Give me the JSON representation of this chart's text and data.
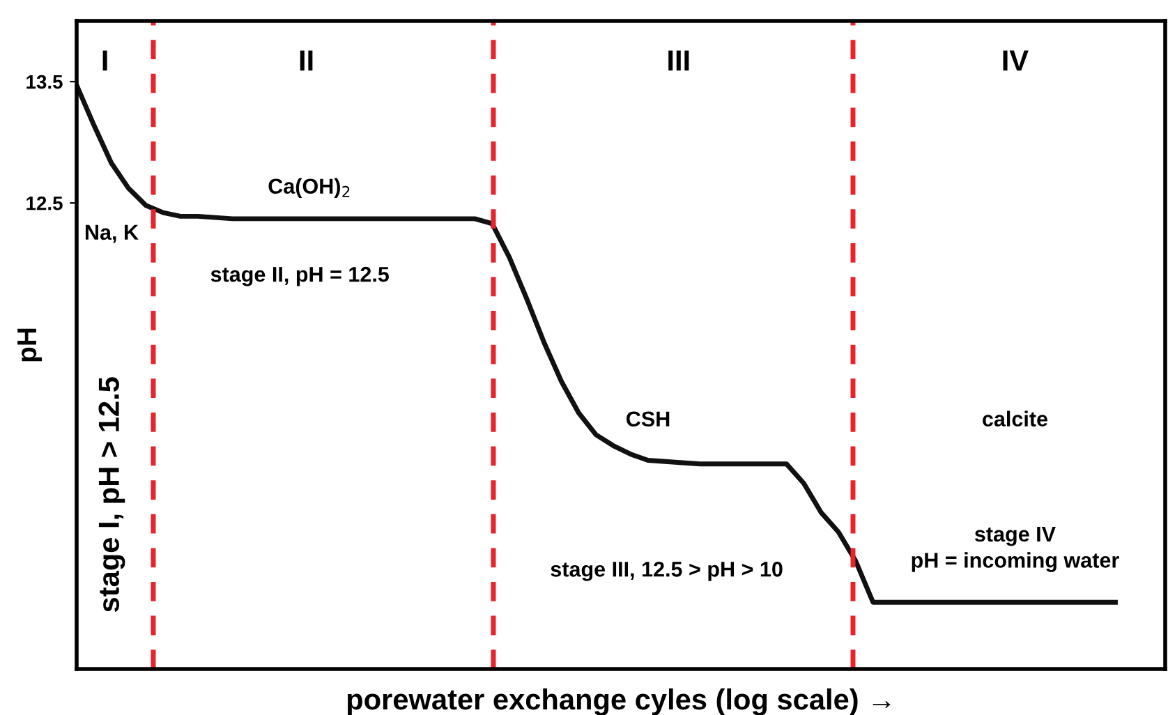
{
  "chart_data": {
    "type": "line",
    "xlabel": "porewater exchange cyles (log scale) →",
    "ylabel": "pH",
    "categories": [
      null,
      null,
      null,
      null,
      null,
      null,
      null,
      null,
      null,
      null,
      null,
      null,
      null,
      null,
      null,
      null,
      null,
      null,
      null,
      null,
      null,
      null,
      null,
      null,
      null,
      null,
      null,
      null,
      null,
      null,
      null,
      null,
      null,
      null,
      null,
      null,
      null,
      null,
      null,
      null,
      null,
      null,
      null,
      null,
      null,
      null,
      null,
      null,
      null,
      null,
      null,
      null,
      null,
      null,
      null,
      null,
      null,
      null,
      null,
      null,
      null
    ],
    "series": [
      {
        "color": "#111111",
        "values": [
          13.47,
          13.14,
          12.83,
          12.62,
          12.48,
          12.42,
          12.39,
          12.39,
          12.38,
          12.37,
          12.37,
          12.37,
          12.37,
          12.37,
          12.37,
          12.37,
          12.37,
          12.37,
          12.37,
          12.37,
          12.37,
          12.37,
          12.37,
          12.37,
          12.33,
          12.05,
          11.71,
          11.35,
          11.03,
          10.77,
          10.59,
          10.5,
          10.43,
          10.38,
          10.37,
          10.36,
          10.35,
          10.35,
          10.35,
          10.35,
          10.35,
          10.35,
          10.19,
          9.95,
          9.79,
          9.55,
          9.21,
          9.21,
          9.21,
          9.21,
          9.21,
          9.21,
          9.21,
          9.21,
          9.21,
          9.21,
          9.21,
          9.21,
          9.21,
          9.21,
          9.21
        ]
      }
    ],
    "ylim": [
      8.66,
      14.0
    ],
    "yticks": [
      12.5,
      13.5
    ],
    "tick_labels": "y",
    "marker": "none",
    "line_style": "solid",
    "annotations": [
      "I",
      "II",
      "III",
      "IV",
      "stage I, pH > 12.5",
      "Ca(OH)$_{2}$",
      "Na, K",
      "stage II, pH = 12.5",
      "CSH",
      "calcite",
      "stage IV\npH = incoming water",
      "stage III, 12.5 > pH > 10"
    ]
  }
}
